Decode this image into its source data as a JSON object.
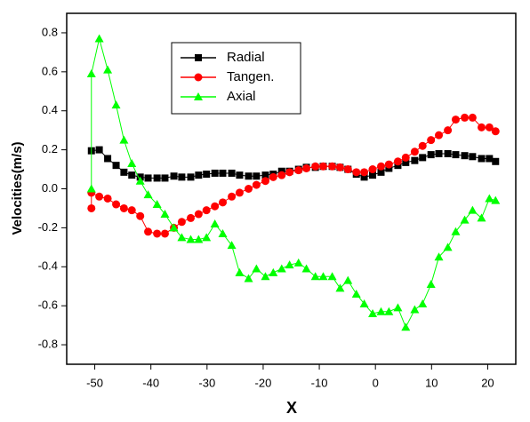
{
  "chart_data": {
    "type": "line",
    "x_label": "X",
    "y_label": "Velocities(m/s)",
    "xlim": [
      -55,
      25
    ],
    "ylim": [
      -0.9,
      0.9
    ],
    "xticks": [
      -50,
      -40,
      -30,
      -20,
      -10,
      0,
      10,
      20
    ],
    "yticks": [
      -0.8,
      -0.6,
      -0.4,
      -0.2,
      {
        "value": 0,
        "label": "0.0"
      },
      0.2,
      0.4,
      0.6,
      0.8
    ],
    "legend": "top-left",
    "series": [
      {
        "name": "Radial",
        "color": "#000000",
        "marker": "square",
        "x": [
          -50.6,
          -49.2,
          -47.7,
          -46.2,
          -44.8,
          -43.4,
          -41.9,
          -40.5,
          -38.9,
          -37.5,
          -35.9,
          -34.5,
          -32.9,
          -31.5,
          -30.1,
          -28.6,
          -27.2,
          -25.6,
          -24.2,
          -22.6,
          -21.2,
          -19.6,
          -18.2,
          -16.7,
          -15.3,
          -13.7,
          -12.3,
          -10.7,
          -9.3,
          -7.7,
          -6.3,
          -4.9,
          -3.4,
          -2.0,
          -0.5,
          1.0,
          2.4,
          4.0,
          5.4,
          7.0,
          8.4,
          9.9,
          11.3,
          12.9,
          14.3,
          15.9,
          17.3,
          18.9,
          20.3,
          21.4
        ],
        "values": [
          0.195,
          0.2,
          0.155,
          0.12,
          0.085,
          0.07,
          0.06,
          0.055,
          0.055,
          0.055,
          0.065,
          0.06,
          0.06,
          0.07,
          0.075,
          0.08,
          0.08,
          0.08,
          0.07,
          0.065,
          0.065,
          0.07,
          0.075,
          0.09,
          0.09,
          0.1,
          0.11,
          0.11,
          0.115,
          0.115,
          0.11,
          0.1,
          0.075,
          0.06,
          0.07,
          0.085,
          0.105,
          0.12,
          0.135,
          0.145,
          0.16,
          0.175,
          0.18,
          0.18,
          0.175,
          0.17,
          0.165,
          0.155,
          0.155,
          0.14
        ]
      },
      {
        "name": "Tangen.",
        "color": "#ff0000",
        "marker": "circle",
        "x": [
          -50.6,
          -50.6,
          -49.2,
          -47.7,
          -46.2,
          -44.8,
          -43.4,
          -41.9,
          -40.5,
          -38.9,
          -37.5,
          -35.9,
          -34.5,
          -32.9,
          -31.5,
          -30.1,
          -28.6,
          -27.2,
          -25.6,
          -24.2,
          -22.6,
          -21.2,
          -19.6,
          -18.2,
          -16.7,
          -15.3,
          -13.7,
          -12.3,
          -10.7,
          -9.3,
          -7.7,
          -6.3,
          -4.9,
          -3.4,
          -2.0,
          -0.5,
          1.0,
          2.4,
          4.0,
          5.4,
          7.0,
          8.4,
          9.9,
          11.3,
          12.9,
          14.3,
          15.9,
          17.3,
          18.9,
          20.3,
          21.4
        ],
        "values": [
          -0.1,
          -0.02,
          -0.04,
          -0.05,
          -0.08,
          -0.1,
          -0.11,
          -0.14,
          -0.22,
          -0.23,
          -0.23,
          -0.2,
          -0.17,
          -0.15,
          -0.13,
          -0.11,
          -0.09,
          -0.07,
          -0.04,
          -0.02,
          0.0,
          0.02,
          0.04,
          0.06,
          0.07,
          0.085,
          0.095,
          0.105,
          0.115,
          0.115,
          0.115,
          0.11,
          0.1,
          0.085,
          0.085,
          0.1,
          0.115,
          0.125,
          0.14,
          0.16,
          0.19,
          0.22,
          0.25,
          0.275,
          0.3,
          0.355,
          0.365,
          0.365,
          0.315,
          0.315,
          0.295
        ]
      },
      {
        "name": "Axial",
        "color": "#00ff00",
        "marker": "triangle",
        "x": [
          -50.6,
          -50.6,
          -49.2,
          -47.7,
          -46.2,
          -44.8,
          -43.4,
          -41.9,
          -40.5,
          -38.9,
          -37.5,
          -35.9,
          -34.5,
          -32.9,
          -31.5,
          -30.1,
          -28.6,
          -27.2,
          -25.6,
          -24.2,
          -22.6,
          -21.2,
          -19.6,
          -18.2,
          -16.7,
          -15.3,
          -13.7,
          -12.3,
          -10.7,
          -9.3,
          -7.7,
          -6.3,
          -4.9,
          -3.4,
          -2.0,
          -0.5,
          1.0,
          2.4,
          4.0,
          5.4,
          7.0,
          8.4,
          9.9,
          11.3,
          12.9,
          14.3,
          15.9,
          17.3,
          18.9,
          20.3,
          21.4
        ],
        "values": [
          0.0,
          0.59,
          0.77,
          0.61,
          0.43,
          0.25,
          0.13,
          0.04,
          -0.03,
          -0.08,
          -0.13,
          -0.2,
          -0.25,
          -0.26,
          -0.26,
          -0.25,
          -0.18,
          -0.23,
          -0.29,
          -0.43,
          -0.46,
          -0.41,
          -0.45,
          -0.43,
          -0.41,
          -0.39,
          -0.38,
          -0.41,
          -0.45,
          -0.45,
          -0.45,
          -0.51,
          -0.47,
          -0.54,
          -0.59,
          -0.64,
          -0.63,
          -0.63,
          -0.61,
          -0.71,
          -0.62,
          -0.59,
          -0.49,
          -0.35,
          -0.3,
          -0.22,
          -0.16,
          -0.11,
          -0.15,
          -0.05,
          -0.06
        ]
      }
    ]
  }
}
